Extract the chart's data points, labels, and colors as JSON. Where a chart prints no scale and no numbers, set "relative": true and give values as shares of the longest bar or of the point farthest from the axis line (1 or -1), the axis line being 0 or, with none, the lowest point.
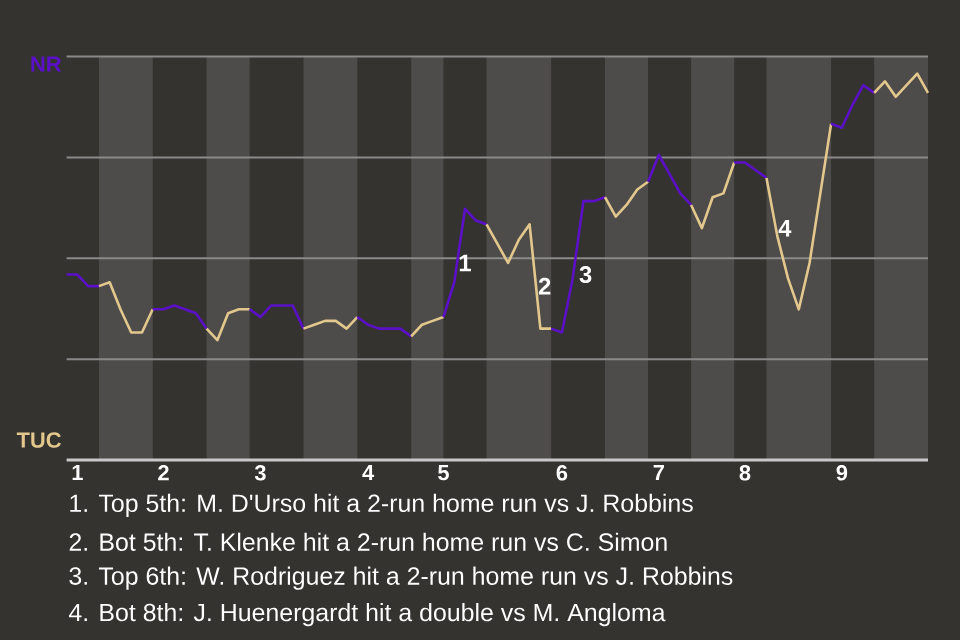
{
  "chart_data": {
    "type": "line",
    "relative": true,
    "grid": "y",
    "categories": [
      null,
      "1",
      null,
      null,
      null,
      null,
      null,
      null,
      null,
      "2",
      null,
      null,
      null,
      null,
      null,
      null,
      null,
      null,
      "3",
      null,
      null,
      null,
      null,
      null,
      null,
      null,
      null,
      null,
      "4",
      null,
      null,
      null,
      null,
      null,
      null,
      "5",
      null,
      null,
      null,
      null,
      null,
      null,
      null,
      null,
      null,
      null,
      "6",
      null,
      null,
      null,
      null,
      null,
      null,
      null,
      null,
      "7",
      null,
      null,
      null,
      null,
      null,
      null,
      null,
      "8",
      null,
      null,
      null,
      null,
      null,
      null,
      null,
      null,
      "9",
      null,
      null,
      null,
      null,
      null,
      null,
      null,
      null
    ],
    "series": [
      {
        "color": "#5b10c8",
        "values": [
          0.48,
          0.48,
          0.45,
          0.45,
          null,
          null,
          null,
          null,
          null,
          null,
          null,
          null,
          null,
          null,
          null,
          null,
          null,
          null,
          null,
          null,
          null,
          null,
          null,
          null,
          null,
          null,
          null,
          null,
          null,
          null,
          null,
          null,
          null,
          null,
          null,
          null,
          null,
          null,
          null,
          null,
          null,
          null,
          null,
          null,
          null,
          null,
          null,
          null,
          null,
          null,
          null,
          null,
          null,
          null,
          null,
          null,
          null,
          null,
          null,
          null,
          null,
          null,
          null,
          null,
          null,
          null,
          null,
          null,
          null,
          null,
          null,
          null,
          null,
          null,
          null,
          null,
          null,
          null,
          null,
          null,
          null
        ]
      },
      {
        "color": "#e3c88e",
        "values": [
          null,
          null,
          null,
          0.45,
          0.46,
          0.39,
          0.33,
          0.33,
          0.39,
          null,
          null,
          null,
          null,
          null,
          null,
          null,
          null,
          null,
          null,
          null,
          null,
          null,
          null,
          null,
          null,
          null,
          null,
          null,
          null,
          null,
          null,
          null,
          null,
          null,
          null,
          null,
          null,
          null,
          null,
          null,
          null,
          null,
          null,
          null,
          null,
          null,
          null,
          null,
          null,
          null,
          null,
          null,
          null,
          null,
          null,
          null,
          null,
          null,
          null,
          null,
          null,
          null,
          null,
          null,
          null,
          null,
          null,
          null,
          null,
          null,
          null,
          null,
          null,
          null,
          null,
          null,
          null,
          null,
          null,
          null,
          null
        ]
      },
      {
        "color": "#5b10c8",
        "values": [
          null,
          null,
          null,
          null,
          null,
          null,
          null,
          null,
          0.39,
          0.39,
          0.4,
          0.39,
          0.38,
          0.34,
          null,
          null,
          null,
          null,
          null,
          null,
          null,
          null,
          null,
          null,
          null,
          null,
          null,
          null,
          null,
          null,
          null,
          null,
          null,
          null,
          null,
          null,
          null,
          null,
          null,
          null,
          null,
          null,
          null,
          null,
          null,
          null,
          null,
          null,
          null,
          null,
          null,
          null,
          null,
          null,
          null,
          null,
          null,
          null,
          null,
          null,
          null,
          null,
          null,
          null,
          null,
          null,
          null,
          null,
          null,
          null,
          null,
          null,
          null,
          null,
          null,
          null,
          null,
          null,
          null,
          null,
          null
        ]
      },
      {
        "color": "#e3c88e",
        "values": [
          null,
          null,
          null,
          null,
          null,
          null,
          null,
          null,
          null,
          null,
          null,
          null,
          null,
          0.34,
          0.31,
          0.38,
          0.39,
          0.39,
          null,
          null,
          null,
          null,
          null,
          null,
          null,
          null,
          null,
          null,
          null,
          null,
          null,
          null,
          null,
          null,
          null,
          null,
          null,
          null,
          null,
          null,
          null,
          null,
          null,
          null,
          null,
          null,
          null,
          null,
          null,
          null,
          null,
          null,
          null,
          null,
          null,
          null,
          null,
          null,
          null,
          null,
          null,
          null,
          null,
          null,
          null,
          null,
          null,
          null,
          null,
          null,
          null,
          null,
          null,
          null,
          null,
          null,
          null,
          null,
          null,
          null,
          null
        ]
      },
      {
        "color": "#5b10c8",
        "values": [
          null,
          null,
          null,
          null,
          null,
          null,
          null,
          null,
          null,
          null,
          null,
          null,
          null,
          null,
          null,
          null,
          null,
          0.39,
          0.37,
          0.4,
          0.4,
          0.4,
          0.34,
          null,
          null,
          null,
          null,
          null,
          null,
          null,
          null,
          null,
          null,
          null,
          null,
          null,
          null,
          null,
          null,
          null,
          null,
          null,
          null,
          null,
          null,
          null,
          null,
          null,
          null,
          null,
          null,
          null,
          null,
          null,
          null,
          null,
          null,
          null,
          null,
          null,
          null,
          null,
          null,
          null,
          null,
          null,
          null,
          null,
          null,
          null,
          null,
          null,
          null,
          null,
          null,
          null,
          null,
          null,
          null,
          null,
          null
        ]
      },
      {
        "color": "#e3c88e",
        "values": [
          null,
          null,
          null,
          null,
          null,
          null,
          null,
          null,
          null,
          null,
          null,
          null,
          null,
          null,
          null,
          null,
          null,
          null,
          null,
          null,
          null,
          null,
          0.34,
          0.35,
          0.36,
          0.36,
          0.34,
          0.37,
          null,
          null,
          null,
          null,
          null,
          null,
          null,
          null,
          null,
          null,
          null,
          null,
          null,
          null,
          null,
          null,
          null,
          null,
          null,
          null,
          null,
          null,
          null,
          null,
          null,
          null,
          null,
          null,
          null,
          null,
          null,
          null,
          null,
          null,
          null,
          null,
          null,
          null,
          null,
          null,
          null,
          null,
          null,
          null,
          null,
          null,
          null,
          null,
          null,
          null,
          null,
          null,
          null
        ]
      },
      {
        "color": "#5b10c8",
        "values": [
          null,
          null,
          null,
          null,
          null,
          null,
          null,
          null,
          null,
          null,
          null,
          null,
          null,
          null,
          null,
          null,
          null,
          null,
          null,
          null,
          null,
          null,
          null,
          null,
          null,
          null,
          null,
          0.37,
          0.35,
          0.34,
          0.34,
          0.34,
          0.32,
          null,
          null,
          null,
          null,
          null,
          null,
          null,
          null,
          null,
          null,
          null,
          null,
          null,
          null,
          null,
          null,
          null,
          null,
          null,
          null,
          null,
          null,
          null,
          null,
          null,
          null,
          null,
          null,
          null,
          null,
          null,
          null,
          null,
          null,
          null,
          null,
          null,
          null,
          null,
          null,
          null,
          null,
          null,
          null,
          null,
          null,
          null,
          null
        ]
      },
      {
        "color": "#e3c88e",
        "values": [
          null,
          null,
          null,
          null,
          null,
          null,
          null,
          null,
          null,
          null,
          null,
          null,
          null,
          null,
          null,
          null,
          null,
          null,
          null,
          null,
          null,
          null,
          null,
          null,
          null,
          null,
          null,
          null,
          null,
          null,
          null,
          null,
          0.32,
          0.35,
          0.36,
          0.37,
          null,
          null,
          null,
          null,
          null,
          null,
          null,
          null,
          null,
          null,
          null,
          null,
          null,
          null,
          null,
          null,
          null,
          null,
          null,
          null,
          null,
          null,
          null,
          null,
          null,
          null,
          null,
          null,
          null,
          null,
          null,
          null,
          null,
          null,
          null,
          null,
          null,
          null,
          null,
          null,
          null,
          null,
          null,
          null,
          null
        ]
      },
      {
        "color": "#5b10c8",
        "values": [
          null,
          null,
          null,
          null,
          null,
          null,
          null,
          null,
          null,
          null,
          null,
          null,
          null,
          null,
          null,
          null,
          null,
          null,
          null,
          null,
          null,
          null,
          null,
          null,
          null,
          null,
          null,
          null,
          null,
          null,
          null,
          null,
          null,
          null,
          null,
          0.37,
          0.46,
          0.65,
          0.62,
          0.61,
          null,
          null,
          null,
          null,
          null,
          null,
          null,
          null,
          null,
          null,
          null,
          null,
          null,
          null,
          null,
          null,
          null,
          null,
          null,
          null,
          null,
          null,
          null,
          null,
          null,
          null,
          null,
          null,
          null,
          null,
          null,
          null,
          null,
          null,
          null,
          null,
          null,
          null,
          null,
          null,
          null
        ]
      },
      {
        "color": "#e3c88e",
        "values": [
          null,
          null,
          null,
          null,
          null,
          null,
          null,
          null,
          null,
          null,
          null,
          null,
          null,
          null,
          null,
          null,
          null,
          null,
          null,
          null,
          null,
          null,
          null,
          null,
          null,
          null,
          null,
          null,
          null,
          null,
          null,
          null,
          null,
          null,
          null,
          null,
          null,
          null,
          null,
          0.61,
          0.56,
          0.51,
          0.57,
          0.61,
          0.34,
          0.34,
          null,
          null,
          null,
          null,
          null,
          null,
          null,
          null,
          null,
          null,
          null,
          null,
          null,
          null,
          null,
          null,
          null,
          null,
          null,
          null,
          null,
          null,
          null,
          null,
          null,
          null,
          null,
          null,
          null,
          null,
          null,
          null,
          null,
          null,
          null
        ]
      },
      {
        "color": "#5b10c8",
        "values": [
          null,
          null,
          null,
          null,
          null,
          null,
          null,
          null,
          null,
          null,
          null,
          null,
          null,
          null,
          null,
          null,
          null,
          null,
          null,
          null,
          null,
          null,
          null,
          null,
          null,
          null,
          null,
          null,
          null,
          null,
          null,
          null,
          null,
          null,
          null,
          null,
          null,
          null,
          null,
          null,
          null,
          null,
          null,
          null,
          null,
          0.34,
          0.33,
          0.47,
          0.67,
          0.67,
          0.68,
          null,
          null,
          null,
          null,
          null,
          null,
          null,
          null,
          null,
          null,
          null,
          null,
          null,
          null,
          null,
          null,
          null,
          null,
          null,
          null,
          null,
          null,
          null,
          null,
          null,
          null,
          null,
          null,
          null,
          null
        ]
      },
      {
        "color": "#e3c88e",
        "values": [
          null,
          null,
          null,
          null,
          null,
          null,
          null,
          null,
          null,
          null,
          null,
          null,
          null,
          null,
          null,
          null,
          null,
          null,
          null,
          null,
          null,
          null,
          null,
          null,
          null,
          null,
          null,
          null,
          null,
          null,
          null,
          null,
          null,
          null,
          null,
          null,
          null,
          null,
          null,
          null,
          null,
          null,
          null,
          null,
          null,
          null,
          null,
          null,
          null,
          null,
          0.68,
          0.63,
          0.66,
          0.7,
          0.72,
          null,
          null,
          null,
          null,
          null,
          null,
          null,
          null,
          null,
          null,
          null,
          null,
          null,
          null,
          null,
          null,
          null,
          null,
          null,
          null,
          null,
          null,
          null,
          null,
          null,
          null
        ]
      },
      {
        "color": "#5b10c8",
        "values": [
          null,
          null,
          null,
          null,
          null,
          null,
          null,
          null,
          null,
          null,
          null,
          null,
          null,
          null,
          null,
          null,
          null,
          null,
          null,
          null,
          null,
          null,
          null,
          null,
          null,
          null,
          null,
          null,
          null,
          null,
          null,
          null,
          null,
          null,
          null,
          null,
          null,
          null,
          null,
          null,
          null,
          null,
          null,
          null,
          null,
          null,
          null,
          null,
          null,
          null,
          null,
          null,
          null,
          null,
          0.72,
          0.79,
          0.74,
          0.69,
          0.66,
          null,
          null,
          null,
          null,
          null,
          null,
          null,
          null,
          null,
          null,
          null,
          null,
          null,
          null,
          null,
          null,
          null,
          null,
          null,
          null,
          null,
          null
        ]
      },
      {
        "color": "#e3c88e",
        "values": [
          null,
          null,
          null,
          null,
          null,
          null,
          null,
          null,
          null,
          null,
          null,
          null,
          null,
          null,
          null,
          null,
          null,
          null,
          null,
          null,
          null,
          null,
          null,
          null,
          null,
          null,
          null,
          null,
          null,
          null,
          null,
          null,
          null,
          null,
          null,
          null,
          null,
          null,
          null,
          null,
          null,
          null,
          null,
          null,
          null,
          null,
          null,
          null,
          null,
          null,
          null,
          null,
          null,
          null,
          null,
          null,
          null,
          null,
          0.66,
          0.6,
          0.68,
          0.69,
          0.77,
          null,
          null,
          null,
          null,
          null,
          null,
          null,
          null,
          null,
          null,
          null,
          null,
          null,
          null,
          null,
          null,
          null,
          null
        ]
      },
      {
        "color": "#5b10c8",
        "values": [
          null,
          null,
          null,
          null,
          null,
          null,
          null,
          null,
          null,
          null,
          null,
          null,
          null,
          null,
          null,
          null,
          null,
          null,
          null,
          null,
          null,
          null,
          null,
          null,
          null,
          null,
          null,
          null,
          null,
          null,
          null,
          null,
          null,
          null,
          null,
          null,
          null,
          null,
          null,
          null,
          null,
          null,
          null,
          null,
          null,
          null,
          null,
          null,
          null,
          null,
          null,
          null,
          null,
          null,
          null,
          null,
          null,
          null,
          null,
          null,
          null,
          null,
          0.77,
          0.77,
          0.75,
          0.73,
          null,
          null,
          null,
          null,
          null,
          null,
          null,
          null,
          null,
          null,
          null,
          null,
          null,
          null,
          null
        ]
      },
      {
        "color": "#e3c88e",
        "values": [
          null,
          null,
          null,
          null,
          null,
          null,
          null,
          null,
          null,
          null,
          null,
          null,
          null,
          null,
          null,
          null,
          null,
          null,
          null,
          null,
          null,
          null,
          null,
          null,
          null,
          null,
          null,
          null,
          null,
          null,
          null,
          null,
          null,
          null,
          null,
          null,
          null,
          null,
          null,
          null,
          null,
          null,
          null,
          null,
          null,
          null,
          null,
          null,
          null,
          null,
          null,
          null,
          null,
          null,
          null,
          null,
          null,
          null,
          null,
          null,
          null,
          null,
          null,
          null,
          null,
          0.73,
          0.58,
          0.47,
          0.39,
          0.51,
          0.69,
          0.87,
          null,
          null,
          null,
          null,
          null,
          null,
          null,
          null,
          null
        ]
      },
      {
        "color": "#5b10c8",
        "values": [
          null,
          null,
          null,
          null,
          null,
          null,
          null,
          null,
          null,
          null,
          null,
          null,
          null,
          null,
          null,
          null,
          null,
          null,
          null,
          null,
          null,
          null,
          null,
          null,
          null,
          null,
          null,
          null,
          null,
          null,
          null,
          null,
          null,
          null,
          null,
          null,
          null,
          null,
          null,
          null,
          null,
          null,
          null,
          null,
          null,
          null,
          null,
          null,
          null,
          null,
          null,
          null,
          null,
          null,
          null,
          null,
          null,
          null,
          null,
          null,
          null,
          null,
          null,
          null,
          null,
          null,
          null,
          null,
          null,
          null,
          null,
          0.87,
          0.86,
          0.92,
          0.97,
          0.95,
          null,
          null,
          null,
          null,
          null
        ]
      },
      {
        "color": "#e3c88e",
        "values": [
          null,
          null,
          null,
          null,
          null,
          null,
          null,
          null,
          null,
          null,
          null,
          null,
          null,
          null,
          null,
          null,
          null,
          null,
          null,
          null,
          null,
          null,
          null,
          null,
          null,
          null,
          null,
          null,
          null,
          null,
          null,
          null,
          null,
          null,
          null,
          null,
          null,
          null,
          null,
          null,
          null,
          null,
          null,
          null,
          null,
          null,
          null,
          null,
          null,
          null,
          null,
          null,
          null,
          null,
          null,
          null,
          null,
          null,
          null,
          null,
          null,
          null,
          null,
          null,
          null,
          null,
          null,
          null,
          null,
          null,
          null,
          null,
          null,
          null,
          null,
          0.95,
          0.98,
          0.94,
          0.97,
          1.0,
          0.95
        ]
      }
    ],
    "annotations": [
      "NR",
      "TUC",
      "1",
      "2",
      "3",
      "4",
      "1. Top 5th: M. D'Urso hit a 2-run home run vs J. Robbins",
      "2. Bot 5th: T. Klenke hit a 2-run home run vs C. Simon",
      "3. Top 6th: W. Rodriguez hit a 2-run home run vs J. Robbins",
      "4. Bot 8th: J. Huenergardt hit a double vs M. Angloma"
    ]
  }
}
